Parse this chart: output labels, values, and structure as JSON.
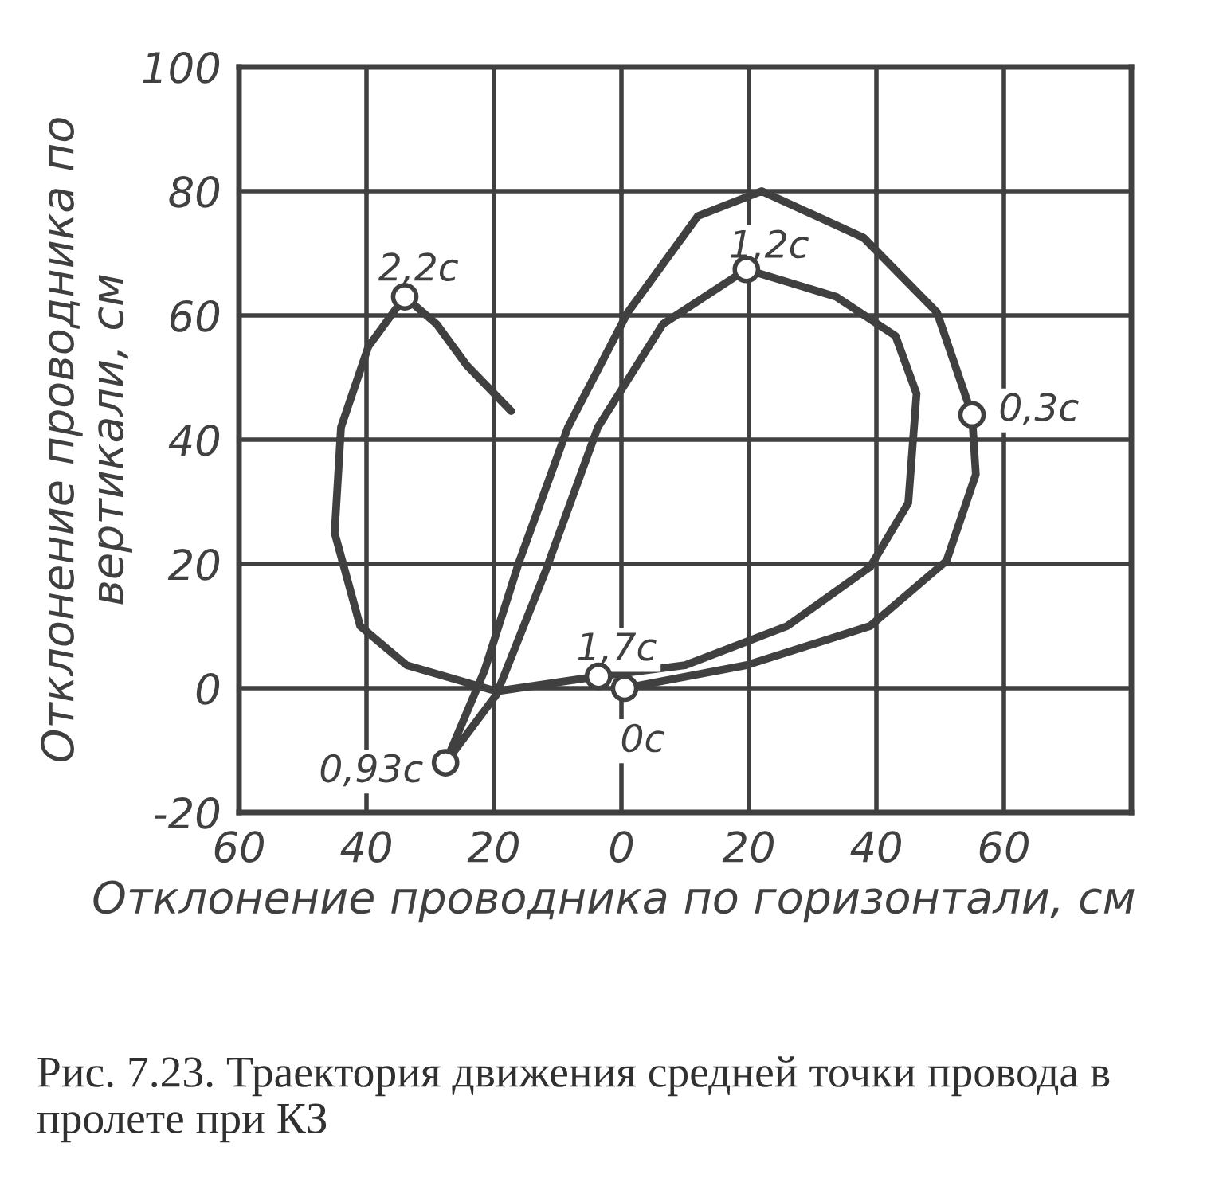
{
  "chart_data": {
    "type": "line",
    "xlabel": "Отклонение проводника по горизонтали, см",
    "ylabel": "Отклонение проводника по вертикали, см",
    "xlim": [
      -60,
      80
    ],
    "ylim": [
      -20,
      100
    ],
    "xticks": [
      {
        "value": -60,
        "label": "60"
      },
      {
        "value": -40,
        "label": "40"
      },
      {
        "value": -20,
        "label": "20"
      },
      0,
      20,
      40,
      60
    ],
    "yticks": [
      -20,
      0,
      20,
      40,
      60,
      80,
      100
    ],
    "grid": true,
    "marker": "none",
    "line_style": "solid",
    "series": [
      {
        "color": "#404040",
        "x": [
          0.5,
          19.6,
          39,
          51,
          55.6,
          55,
          49.5,
          38,
          22,
          12,
          1,
          -8.4,
          -16,
          -21.5,
          -27.6,
          -19.6,
          -12,
          -3.7,
          6.5,
          19.6,
          33.7,
          43,
          46.3,
          45,
          39,
          26,
          10,
          -3.6,
          -19.6,
          -33.7,
          -41,
          -45,
          -44,
          -39.7,
          -34,
          -29,
          -24.3,
          -17.3
        ],
        "values": [
          0,
          3.7,
          10,
          20.5,
          34.4,
          44,
          60.5,
          72.5,
          80,
          76,
          60.5,
          42,
          20.5,
          2.8,
          -12,
          -1,
          18.6,
          42,
          58.6,
          67.4,
          63,
          56.7,
          47.4,
          29.8,
          19.5,
          10,
          3.7,
          1.9,
          -0.5,
          3.7,
          10,
          25,
          42,
          55,
          63,
          58.6,
          52,
          44.6
        ]
      },
      {
        "type": "scatter",
        "marker": "circle",
        "color": "#404040",
        "x": [
          0.5,
          55,
          -27.6,
          19.6,
          -3.6,
          -34
        ],
        "values": [
          0,
          44,
          -12,
          67.4,
          1.9,
          63
        ]
      }
    ],
    "annotations": [
      {
        "text": "0с",
        "x": 0.5,
        "y": 0
      },
      {
        "text": "0,3с",
        "x": 55,
        "y": 44
      },
      {
        "text": "0,93с",
        "x": -27.6,
        "y": -12
      },
      {
        "text": "1,2с",
        "x": 19.6,
        "y": 67.4
      },
      {
        "text": "1,7с",
        "x": -3.6,
        "y": 1.9
      },
      {
        "text": "2,2с",
        "x": -34,
        "y": 63
      },
      "Рис. 7.23. Траектория движения средней точки провода в пролете при КЗ"
    ]
  }
}
